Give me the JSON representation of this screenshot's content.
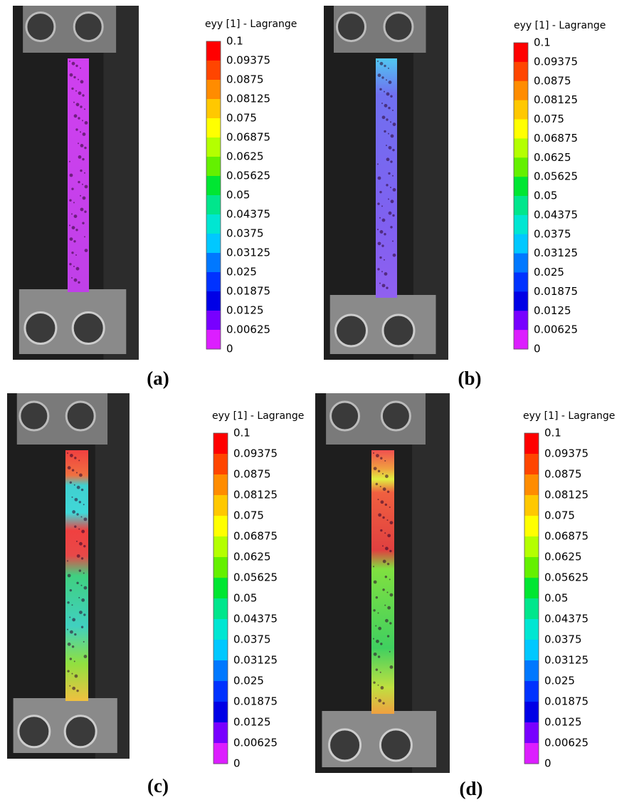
{
  "colormap": [
    "#ff0000",
    "#ff4500",
    "#ff8c00",
    "#ffc800",
    "#ffff00",
    "#b4ff00",
    "#64f000",
    "#00e632",
    "#00e68c",
    "#00e6d2",
    "#00c8ff",
    "#0078ff",
    "#0032ff",
    "#0000e6",
    "#7800ff",
    "#dc1eff"
  ],
  "panels": [
    {
      "label": "(a)",
      "colorbar": {
        "title": "eyy [1] - Lagrange",
        "ticks": [
          0.1,
          0.09375,
          0.0875,
          0.08125,
          0.075,
          0.06875,
          0.0625,
          0.05625,
          0.05,
          0.04375,
          0.0375,
          0.03125,
          0.025,
          0.01875,
          0.0125,
          0.00625,
          0
        ]
      }
    },
    {
      "label": "(b)",
      "colorbar": {
        "title": "eyy [1] - Lagrange",
        "ticks": [
          0.1,
          0.09375,
          0.0875,
          0.08125,
          0.075,
          0.06875,
          0.0625,
          0.05625,
          0.05,
          0.04375,
          0.0375,
          0.03125,
          0.025,
          0.01875,
          0.0125,
          0.00625,
          0
        ]
      }
    },
    {
      "label": "(c)",
      "colorbar": {
        "title": "eyy [1] - Lagrange",
        "ticks": [
          0.1,
          0.09375,
          0.0875,
          0.08125,
          0.075,
          0.06875,
          0.0625,
          0.05625,
          0.05,
          0.04375,
          0.0375,
          0.03125,
          0.025,
          0.01875,
          0.0125,
          0.00625,
          0
        ]
      }
    },
    {
      "label": "(d)",
      "colorbar": {
        "title": "eyy [1] - Lagrange",
        "ticks": [
          0.1,
          0.09375,
          0.0875,
          0.08125,
          0.075,
          0.06875,
          0.0625,
          0.05625,
          0.05,
          0.04375,
          0.0375,
          0.03125,
          0.025,
          0.01875,
          0.0125,
          0.00625,
          0
        ]
      }
    }
  ]
}
